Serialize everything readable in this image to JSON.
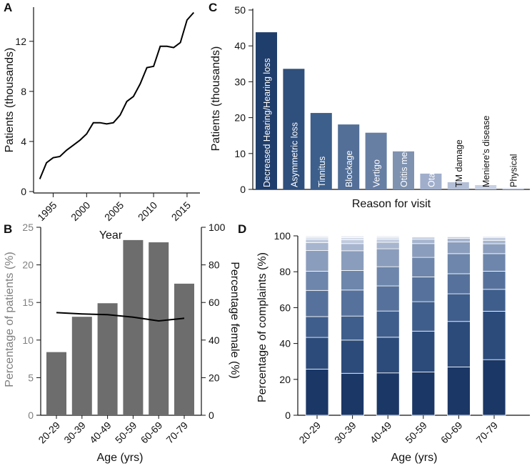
{
  "chart_data": [
    {
      "panel": "A",
      "type": "line",
      "xlabel": "Year",
      "ylabel": "Patients (thousands)",
      "xlim": [
        1992.5,
        2016.5
      ],
      "ylim": [
        0,
        14.5
      ],
      "xticks": [
        1995,
        2000,
        2005,
        2010,
        2015
      ],
      "yticks": [
        0,
        4,
        8,
        12
      ],
      "x": [
        1993,
        1994,
        1995,
        1996,
        1997,
        1998,
        1999,
        2000,
        2001,
        2002,
        2003,
        2004,
        2005,
        2006,
        2007,
        2008,
        2009,
        2010,
        2011,
        2012,
        2013,
        2014,
        2015,
        2016
      ],
      "y": [
        1.0,
        2.3,
        2.7,
        2.8,
        3.3,
        3.7,
        4.1,
        4.6,
        5.5,
        5.5,
        5.4,
        5.5,
        6.1,
        7.2,
        7.6,
        8.6,
        9.9,
        10.0,
        11.6,
        11.6,
        11.5,
        11.9,
        13.7,
        14.3
      ]
    },
    {
      "panel": "C",
      "type": "bar",
      "xlabel": "Reason for visit",
      "ylabel": "Patients (thousands)",
      "ylim": [
        0,
        50
      ],
      "yticks": [
        0,
        10,
        20,
        30,
        40,
        50
      ],
      "categories": [
        "Decreased Hearing/Hearing loss",
        "Asymmetric loss",
        "Tinnitus",
        "Blockage",
        "Vertigo",
        "Otitis media",
        "Otalgia",
        "TM damage",
        "Meniere's disease",
        "Physical"
      ],
      "values": [
        43.8,
        33.6,
        21.3,
        18.1,
        15.8,
        10.6,
        4.4,
        2.0,
        1.2,
        0.4
      ],
      "colors": [
        "#203e6b",
        "#2f4f7c",
        "#3d5f8b",
        "#536f98",
        "#687fa4",
        "#7f92b0",
        "#a0aecb",
        "#b3bfd6",
        "#c8d1e3",
        "#dde2ee"
      ],
      "label_colors": [
        "#ffffff",
        "#ffffff",
        "#ffffff",
        "#ffffff",
        "#ffffff",
        "#ffffff",
        "#ffffff",
        "#111111",
        "#111111",
        "#111111"
      ]
    },
    {
      "panel": "B",
      "type": "bar",
      "xlabel": "Age (yrs)",
      "ylabel": "Percentage of patients (%)",
      "ylabel_right": "Percentage female (%)",
      "ylim": [
        0,
        25
      ],
      "ylim_right": [
        0,
        100
      ],
      "yticks": [
        0,
        5,
        10,
        15,
        20,
        25
      ],
      "yticks_right": [
        0,
        20,
        40,
        60,
        80,
        100
      ],
      "categories": [
        "20-29",
        "30-39",
        "40-49",
        "50-59",
        "60-69",
        "70-79"
      ],
      "values": [
        8.4,
        13.1,
        14.9,
        23.3,
        23.0,
        17.5
      ],
      "line_right": [
        54.6,
        53.9,
        53.5,
        52.2,
        50.2,
        51.6
      ],
      "bar_color": "#6d6d6d"
    },
    {
      "panel": "D",
      "type": "bar",
      "stacked": true,
      "xlabel": "Age (yrs)",
      "ylabel": "Percentage of complaints (%)",
      "ylim": [
        0,
        100
      ],
      "yticks": [
        0,
        20,
        40,
        60,
        80,
        100
      ],
      "categories": [
        "20-29",
        "30-39",
        "40-49",
        "50-59",
        "60-69",
        "70-79"
      ],
      "stack_colors": [
        "#1b3766",
        "#2c4b7b",
        "#3f5e8c",
        "#56729c",
        "#6e86ab",
        "#8b9dbc",
        "#a7b5cf",
        "#c0cbdf",
        "#d6dde9",
        "#e9edf4"
      ],
      "series": [
        {
          "values": [
            25.7,
            23.4,
            23.6,
            24.1,
            26.9,
            31.0
          ]
        },
        {
          "values": [
            17.7,
            18.5,
            19.9,
            22.8,
            25.4,
            27.0
          ]
        },
        {
          "values": [
            11.6,
            13.4,
            14.6,
            16.4,
            15.4,
            12.2
          ]
        },
        {
          "values": [
            14.6,
            14.5,
            14.0,
            13.8,
            11.2,
            10.1
          ]
        },
        {
          "values": [
            10.7,
            10.9,
            10.7,
            10.9,
            11.2,
            9.8
          ]
        },
        {
          "values": [
            11.5,
            11.0,
            10.0,
            7.7,
            6.5,
            5.5
          ]
        },
        {
          "values": [
            4.4,
            4.0,
            3.6,
            2.4,
            2.0,
            1.9
          ]
        },
        {
          "values": [
            1.9,
            2.1,
            1.7,
            1.2,
            0.9,
            1.6
          ]
        },
        {
          "values": [
            1.1,
            1.2,
            1.1,
            0.4,
            0.3,
            0.6
          ]
        },
        {
          "values": [
            0.8,
            1.0,
            0.8,
            0.3,
            0.2,
            0.3
          ]
        }
      ]
    }
  ]
}
